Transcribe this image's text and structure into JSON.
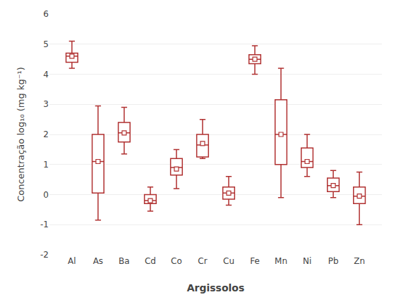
{
  "chart_data": {
    "type": "box",
    "xlabel": "Argissolos",
    "ylabel": "Concentração log₁₀ (mg kg⁻¹)",
    "categories": [
      "Al",
      "As",
      "Ba",
      "Cd",
      "Co",
      "Cr",
      "Cu",
      "Fe",
      "Mn",
      "Ni",
      "Pb",
      "Zn"
    ],
    "whislo": [
      4.2,
      -0.85,
      1.35,
      -0.55,
      0.2,
      1.2,
      -0.35,
      4.0,
      -0.1,
      0.6,
      -0.1,
      -1.0
    ],
    "q1": [
      4.4,
      0.05,
      1.75,
      -0.3,
      0.65,
      1.25,
      -0.15,
      4.35,
      1.0,
      0.9,
      0.1,
      -0.3
    ],
    "median": [
      4.6,
      1.1,
      2.05,
      -0.2,
      0.9,
      1.65,
      0.05,
      4.5,
      2.0,
      1.1,
      0.3,
      -0.05
    ],
    "mean": [
      4.6,
      1.1,
      2.05,
      -0.2,
      0.85,
      1.7,
      0.05,
      4.5,
      2.0,
      1.1,
      0.3,
      -0.05
    ],
    "q3": [
      4.7,
      2.0,
      2.4,
      0.0,
      1.2,
      2.0,
      0.25,
      4.65,
      3.15,
      1.55,
      0.55,
      0.25
    ],
    "whishi": [
      5.1,
      2.95,
      2.9,
      0.25,
      1.5,
      2.5,
      0.6,
      4.95,
      4.2,
      2.0,
      0.8,
      0.75
    ],
    "color": "#b03030",
    "marker": "square",
    "ylim": [
      -2,
      6
    ],
    "yticks": [
      -2,
      -1,
      0,
      1,
      2,
      3,
      4,
      5,
      6
    ],
    "grid": true
  }
}
